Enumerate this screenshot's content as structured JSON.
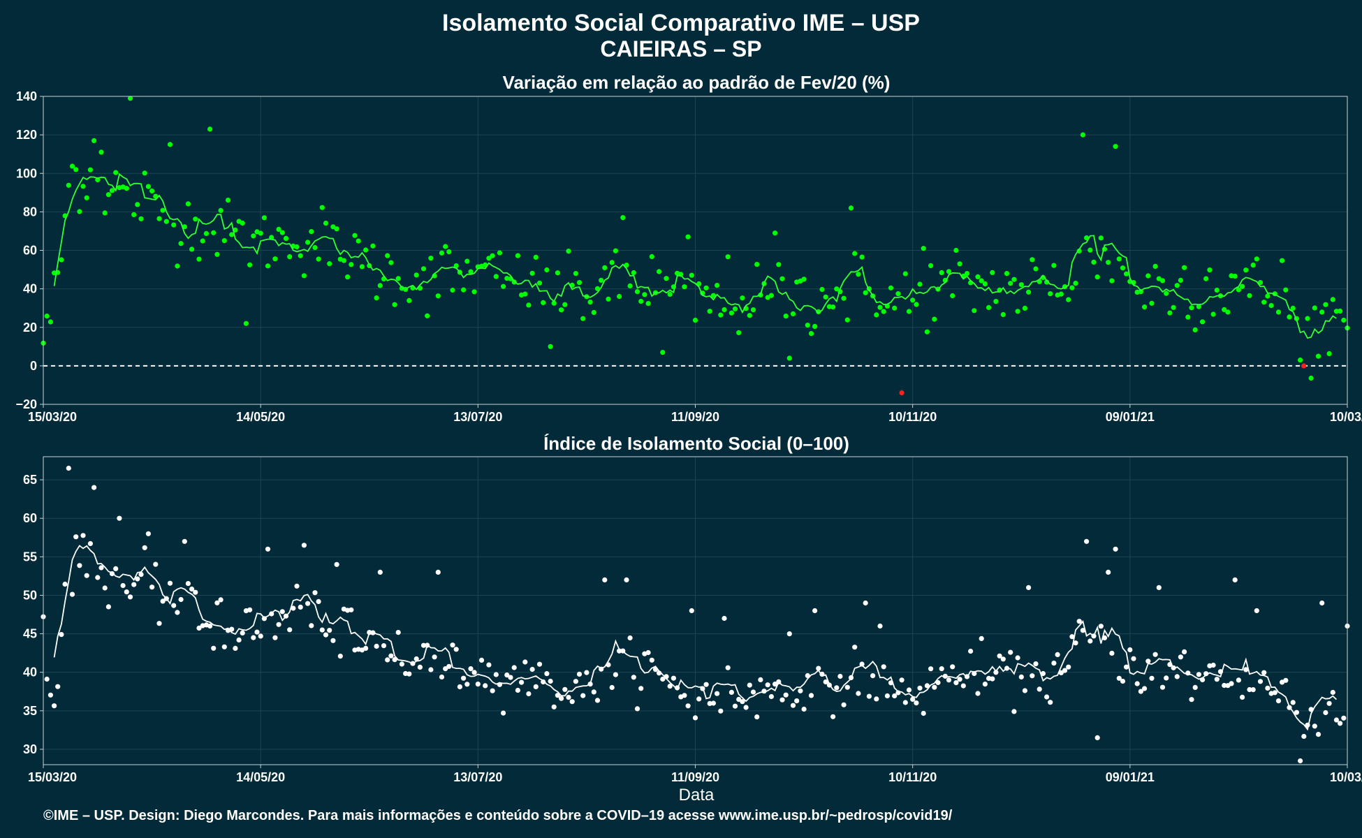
{
  "title": "Isolamento Social Comparativo IME – USP",
  "subtitle": "CAIEIRAS – SP",
  "footer": "©IME – USP. Design: Diego Marcondes. Para mais informações e conteúdo sobre a COVID–19 acesse www.ime.usp.br/~pedrosp/covid19/",
  "colors": {
    "background": "#022A38",
    "top_points": "#00ff00",
    "top_line": "#33ff33",
    "negative_point": "#ff2020",
    "bottom_points": "#ffffff",
    "bottom_line": "#ffffff",
    "grid": "#1c4454",
    "zero_line": "#ffffff"
  },
  "chart_data": [
    {
      "type": "scatter",
      "title": "Variação em relação ao padrão de Fev/20 (%)",
      "xlabel": "",
      "ylabel": "",
      "x_range": [
        "2020-03-15",
        "2021-03-10"
      ],
      "ylim": [
        -20,
        140
      ],
      "yticks": [
        "−20",
        "0",
        "20",
        "40",
        "60",
        "80",
        "100",
        "120",
        "140"
      ],
      "xticks": [
        "15/03/20",
        "14/05/20",
        "13/07/20",
        "11/09/20",
        "10/11/20",
        "09/01/21",
        "10/03/21"
      ],
      "reference_line": 0,
      "grid": true,
      "anchors": [
        {
          "date": "2020-03-15",
          "value": 8
        },
        {
          "date": "2020-03-19",
          "value": 45
        },
        {
          "date": "2020-03-23",
          "value": 100
        },
        {
          "date": "2020-03-26",
          "value": 98
        },
        {
          "date": "2020-04-05",
          "value": 88
        },
        {
          "date": "2020-04-20",
          "value": 76
        },
        {
          "date": "2020-05-01",
          "value": 70
        },
        {
          "date": "2020-05-14",
          "value": 63
        },
        {
          "date": "2020-05-28",
          "value": 65
        },
        {
          "date": "2020-06-10",
          "value": 52
        },
        {
          "date": "2020-06-25",
          "value": 44
        },
        {
          "date": "2020-07-10",
          "value": 46
        },
        {
          "date": "2020-07-25",
          "value": 42
        },
        {
          "date": "2020-08-10",
          "value": 36
        },
        {
          "date": "2020-08-25",
          "value": 43
        },
        {
          "date": "2020-09-10",
          "value": 32
        },
        {
          "date": "2020-09-25",
          "value": 33
        },
        {
          "date": "2020-10-15",
          "value": 34
        },
        {
          "date": "2020-10-28",
          "value": 40
        },
        {
          "date": "2020-11-08",
          "value": 30
        },
        {
          "date": "2020-11-20",
          "value": 40
        },
        {
          "date": "2020-12-10",
          "value": 38
        },
        {
          "date": "2020-12-22",
          "value": 40
        },
        {
          "date": "2020-12-26",
          "value": 57
        },
        {
          "date": "2021-01-05",
          "value": 55
        },
        {
          "date": "2021-01-10",
          "value": 40
        },
        {
          "date": "2021-01-25",
          "value": 38
        },
        {
          "date": "2021-02-10",
          "value": 40
        },
        {
          "date": "2021-02-20",
          "value": 36
        },
        {
          "date": "2021-02-27",
          "value": 17
        },
        {
          "date": "2021-03-05",
          "value": 25
        },
        {
          "date": "2021-03-10",
          "value": 24
        }
      ],
      "outliers": [
        {
          "date": "2020-04-08",
          "value": 139
        },
        {
          "date": "2020-04-30",
          "value": 123
        },
        {
          "date": "2020-03-29",
          "value": 117
        },
        {
          "date": "2020-04-19",
          "value": 115
        },
        {
          "date": "2020-03-31",
          "value": 111
        },
        {
          "date": "2020-09-09",
          "value": 67
        },
        {
          "date": "2020-10-24",
          "value": 82
        },
        {
          "date": "2020-12-27",
          "value": 120
        },
        {
          "date": "2021-01-05",
          "value": 114
        },
        {
          "date": "2020-08-22",
          "value": 77
        },
        {
          "date": "2020-10-03",
          "value": 69
        },
        {
          "date": "2020-11-13",
          "value": 61
        },
        {
          "date": "2020-05-10",
          "value": 22
        },
        {
          "date": "2020-08-02",
          "value": 10
        },
        {
          "date": "2020-10-07",
          "value": 4
        },
        {
          "date": "2020-09-02",
          "value": 7
        },
        {
          "date": "2021-02-25",
          "value": 3
        },
        {
          "date": "2021-03-02",
          "value": 5
        }
      ],
      "negative_points": [
        {
          "date": "2020-11-07",
          "value": -14
        },
        {
          "date": "2021-02-26",
          "value": 0
        }
      ],
      "series": [
        {
          "name": "",
          "kind": "daily points"
        },
        {
          "name": "",
          "kind": "7-day moving average line"
        }
      ]
    },
    {
      "type": "scatter",
      "title": "Índice de Isolamento Social (0–100)",
      "xlabel": "Data",
      "ylabel": "",
      "x_range": [
        "2020-03-15",
        "2021-03-10"
      ],
      "ylim": [
        28,
        68
      ],
      "yticks": [
        "30",
        "35",
        "40",
        "45",
        "50",
        "55",
        "60",
        "65"
      ],
      "xticks": [
        "15/03/20",
        "14/05/20",
        "13/07/20",
        "11/09/20",
        "10/11/20",
        "09/01/21",
        "10/03/21"
      ],
      "grid": true,
      "anchors": [
        {
          "date": "2020-03-15",
          "value": 44
        },
        {
          "date": "2020-03-18",
          "value": 36
        },
        {
          "date": "2020-03-22",
          "value": 53
        },
        {
          "date": "2020-03-26",
          "value": 55
        },
        {
          "date": "2020-04-05",
          "value": 51
        },
        {
          "date": "2020-04-20",
          "value": 49
        },
        {
          "date": "2020-05-01",
          "value": 46
        },
        {
          "date": "2020-05-14",
          "value": 45
        },
        {
          "date": "2020-05-26",
          "value": 48
        },
        {
          "date": "2020-06-10",
          "value": 43
        },
        {
          "date": "2020-06-25",
          "value": 41
        },
        {
          "date": "2020-07-10",
          "value": 40
        },
        {
          "date": "2020-07-25",
          "value": 39
        },
        {
          "date": "2020-08-10",
          "value": 37
        },
        {
          "date": "2020-08-25",
          "value": 41
        },
        {
          "date": "2020-09-10",
          "value": 36
        },
        {
          "date": "2020-09-25",
          "value": 37
        },
        {
          "date": "2020-10-15",
          "value": 37
        },
        {
          "date": "2020-10-28",
          "value": 39
        },
        {
          "date": "2020-11-08",
          "value": 36
        },
        {
          "date": "2020-11-20",
          "value": 39
        },
        {
          "date": "2020-12-10",
          "value": 39
        },
        {
          "date": "2020-12-22",
          "value": 39
        },
        {
          "date": "2020-12-26",
          "value": 44
        },
        {
          "date": "2021-01-05",
          "value": 43
        },
        {
          "date": "2021-01-10",
          "value": 40
        },
        {
          "date": "2021-01-25",
          "value": 39
        },
        {
          "date": "2021-02-10",
          "value": 39
        },
        {
          "date": "2021-02-20",
          "value": 37
        },
        {
          "date": "2021-02-27",
          "value": 32
        },
        {
          "date": "2021-03-06",
          "value": 36
        },
        {
          "date": "2021-03-10",
          "value": 31
        }
      ],
      "outliers": [
        {
          "date": "2020-03-22",
          "value": 66.5
        },
        {
          "date": "2020-03-29",
          "value": 64
        },
        {
          "date": "2020-04-05",
          "value": 60
        },
        {
          "date": "2020-04-13",
          "value": 58
        },
        {
          "date": "2020-04-23",
          "value": 57
        },
        {
          "date": "2020-05-16",
          "value": 56
        },
        {
          "date": "2020-05-26",
          "value": 56.5
        },
        {
          "date": "2020-06-04",
          "value": 54
        },
        {
          "date": "2020-06-16",
          "value": 53
        },
        {
          "date": "2020-07-02",
          "value": 53
        },
        {
          "date": "2020-08-17",
          "value": 52
        },
        {
          "date": "2020-08-23",
          "value": 52
        },
        {
          "date": "2020-09-10",
          "value": 48
        },
        {
          "date": "2020-09-19",
          "value": 47
        },
        {
          "date": "2020-10-07",
          "value": 45
        },
        {
          "date": "2020-10-14",
          "value": 48
        },
        {
          "date": "2020-10-28",
          "value": 49
        },
        {
          "date": "2020-11-01",
          "value": 46
        },
        {
          "date": "2020-12-12",
          "value": 51
        },
        {
          "date": "2020-12-28",
          "value": 57
        },
        {
          "date": "2021-01-03",
          "value": 53
        },
        {
          "date": "2021-01-05",
          "value": 56
        },
        {
          "date": "2021-01-17",
          "value": 51
        },
        {
          "date": "2021-02-07",
          "value": 52
        },
        {
          "date": "2021-02-13",
          "value": 48
        },
        {
          "date": "2021-03-03",
          "value": 49
        },
        {
          "date": "2021-03-10",
          "value": 46
        },
        {
          "date": "2021-02-25",
          "value": 28.5
        },
        {
          "date": "2020-12-31",
          "value": 31.5
        }
      ],
      "series": [
        {
          "name": "",
          "kind": "daily points"
        },
        {
          "name": "",
          "kind": "7-day moving average line"
        }
      ]
    }
  ]
}
